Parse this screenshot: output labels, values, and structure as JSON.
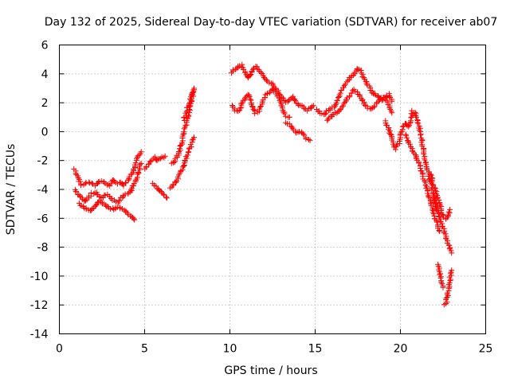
{
  "chart_data": {
    "type": "scatter",
    "title": "Day 132 of 2025, Sidereal Day-to-day VTEC variation (SDTVAR) for receiver ab07",
    "xlabel": "GPS time / hours",
    "ylabel": "SDTVAR / TECUs",
    "xlim": [
      0,
      25
    ],
    "ylim": [
      -14,
      6
    ],
    "xticks": [
      0,
      5,
      10,
      15,
      20,
      25
    ],
    "yticks": [
      -14,
      -12,
      -10,
      -8,
      -6,
      -4,
      -2,
      0,
      2,
      4,
      6
    ],
    "grid": true,
    "marker": "plus",
    "color": "#ff0000",
    "series": [
      {
        "name": "SDTVAR",
        "tracks": [
          {
            "x": [
              0.9,
              1.1,
              1.3,
              1.5,
              1.7,
              1.9,
              2.1,
              2.3,
              2.5,
              2.7,
              3.0,
              3.2,
              3.4,
              3.6,
              3.8,
              4.0,
              4.2,
              4.4,
              4.6,
              4.8
            ],
            "y": [
              -2.6,
              -3.2,
              -3.7,
              -3.6,
              -3.5,
              -3.6,
              -3.7,
              -3.5,
              -3.4,
              -3.6,
              -3.7,
              -3.3,
              -3.6,
              -3.5,
              -3.7,
              -3.4,
              -3.0,
              -2.5,
              -1.8,
              -1.4
            ]
          },
          {
            "x": [
              0.9,
              1.1,
              1.3,
              1.5,
              1.7,
              1.9,
              2.1,
              2.3,
              2.5,
              2.8,
              3.0,
              3.2,
              3.4,
              3.6,
              3.8,
              4.0,
              4.2,
              4.4,
              4.6,
              4.8
            ],
            "y": [
              -4.0,
              -4.4,
              -4.6,
              -4.8,
              -4.6,
              -4.3,
              -4.2,
              -4.4,
              -4.6,
              -4.3,
              -4.5,
              -4.8,
              -4.9,
              -4.6,
              -4.4,
              -4.3,
              -4.1,
              -3.6,
              -3.0,
              -2.2
            ]
          },
          {
            "x": [
              1.2,
              1.4,
              1.6,
              1.8,
              2.0,
              2.2,
              2.4,
              2.6,
              2.8,
              3.0,
              3.2,
              3.4,
              3.6,
              3.8,
              4.0,
              4.2,
              4.4
            ],
            "y": [
              -5.0,
              -5.2,
              -5.4,
              -5.5,
              -5.3,
              -5.0,
              -4.8,
              -5.0,
              -5.2,
              -5.3,
              -5.4,
              -5.2,
              -5.3,
              -5.4,
              -5.6,
              -5.9,
              -6.1
            ]
          },
          {
            "x": [
              5.0,
              5.2,
              5.4,
              5.6,
              5.8,
              6.0,
              6.2
            ],
            "y": [
              -2.6,
              -2.3,
              -2.0,
              -1.8,
              -2.0,
              -1.8,
              -1.7
            ]
          },
          {
            "x": [
              5.5,
              5.7,
              5.9,
              6.1,
              6.3
            ],
            "y": [
              -3.6,
              -3.9,
              -4.1,
              -4.3,
              -4.6
            ]
          },
          {
            "x": [
              6.5,
              6.7,
              6.9,
              7.1,
              7.3,
              7.5,
              7.7,
              7.9
            ],
            "y": [
              -3.9,
              -3.6,
              -3.4,
              -2.8,
              -2.3,
              -1.6,
              -1.0,
              -0.4
            ]
          },
          {
            "x": [
              6.6,
              6.8,
              7.0,
              7.2,
              7.4,
              7.6,
              7.8,
              7.9
            ],
            "y": [
              -2.2,
              -2.0,
              -1.5,
              -0.6,
              0.4,
              1.3,
              2.3,
              3.0
            ]
          },
          {
            "x": [
              7.3,
              7.5,
              7.7,
              7.9
            ],
            "y": [
              0.8,
              1.6,
              2.3,
              2.9
            ]
          },
          {
            "x": [
              10.1,
              10.3,
              10.5,
              10.7,
              10.9,
              11.1,
              11.3,
              11.5,
              11.7,
              11.9,
              12.1,
              12.3,
              12.5,
              12.7,
              12.9,
              13.1,
              13.3,
              13.5,
              13.7,
              13.9,
              14.1,
              14.3,
              14.5,
              14.7,
              14.9
            ],
            "y": [
              4.1,
              4.3,
              4.5,
              4.6,
              4.1,
              3.7,
              4.2,
              4.5,
              4.3,
              4.0,
              3.6,
              3.4,
              3.3,
              3.0,
              2.6,
              2.3,
              2.0,
              2.2,
              2.4,
              2.0,
              1.8,
              1.7,
              1.5,
              1.6,
              1.8
            ]
          },
          {
            "x": [
              10.1,
              10.3,
              10.5,
              10.7,
              10.9,
              11.1,
              11.3,
              11.5,
              11.7,
              11.9,
              12.1,
              12.3,
              12.5,
              12.7,
              12.9,
              13.1,
              13.3,
              13.5
            ],
            "y": [
              1.8,
              1.5,
              1.4,
              1.9,
              2.3,
              2.6,
              1.8,
              1.3,
              1.4,
              2.0,
              2.5,
              2.7,
              3.0,
              2.6,
              2.3,
              1.5,
              1.1,
              1.0
            ]
          },
          {
            "x": [
              13.3,
              13.5,
              13.7,
              13.9,
              14.1,
              14.3,
              14.5,
              14.7
            ],
            "y": [
              0.6,
              0.5,
              0.2,
              -0.1,
              0.0,
              -0.2,
              -0.5,
              -0.6
            ]
          },
          {
            "x": [
              15.1,
              15.3,
              15.5,
              15.7,
              15.9,
              16.1,
              16.3,
              16.5,
              16.7,
              16.9,
              17.1,
              17.3,
              17.5,
              17.7,
              17.9,
              18.1,
              18.3,
              18.5,
              18.7,
              18.9,
              19.1,
              19.3,
              19.5
            ],
            "y": [
              1.5,
              1.3,
              1.2,
              1.4,
              1.6,
              1.7,
              2.2,
              2.8,
              3.2,
              3.5,
              3.8,
              4.0,
              4.4,
              4.2,
              3.6,
              3.2,
              2.8,
              2.6,
              2.4,
              2.2,
              2.4,
              2.6,
              2.1
            ]
          },
          {
            "x": [
              15.7,
              15.9,
              16.1,
              16.3,
              16.5,
              16.7,
              16.9,
              17.1,
              17.3,
              17.5,
              17.7,
              17.9,
              18.1,
              18.3,
              18.5,
              18.7,
              18.9,
              19.1,
              19.3,
              19.5
            ],
            "y": [
              0.8,
              1.0,
              1.2,
              1.4,
              1.6,
              1.9,
              2.3,
              2.6,
              2.9,
              2.6,
              2.3,
              1.9,
              1.6,
              1.6,
              1.8,
              2.1,
              2.4,
              2.3,
              1.9,
              1.3
            ]
          },
          {
            "x": [
              19.1,
              19.3,
              19.5,
              19.7,
              19.9,
              20.1,
              20.3,
              20.5,
              20.7,
              20.9,
              21.1,
              21.3,
              21.5,
              21.7,
              21.9,
              22.1
            ],
            "y": [
              0.7,
              0.3,
              -0.5,
              -1.2,
              -0.8,
              0.2,
              0.6,
              0.3,
              1.4,
              1.2,
              0.3,
              -1.0,
              -2.2,
              -3.2,
              -4.2,
              -5.4
            ]
          },
          {
            "x": [
              20.3,
              20.5,
              20.7,
              20.9,
              21.1,
              21.3,
              21.5,
              21.7,
              21.9,
              22.1,
              22.3
            ],
            "y": [
              -0.2,
              -0.8,
              -1.3,
              -1.7,
              -2.2,
              -3.0,
              -3.8,
              -4.6,
              -5.5,
              -6.2,
              -6.9
            ]
          },
          {
            "x": [
              21.7,
              21.9,
              22.1,
              22.3,
              22.5,
              22.7,
              22.9
            ],
            "y": [
              -2.8,
              -3.5,
              -4.2,
              -5.0,
              -5.8,
              -6.1,
              -5.4
            ]
          },
          {
            "x": [
              22.0,
              22.2,
              22.4,
              22.6,
              22.8,
              23.0
            ],
            "y": [
              -4.5,
              -5.6,
              -6.4,
              -7.0,
              -7.8,
              -8.4
            ]
          },
          {
            "x": [
              22.2,
              22.3,
              22.4,
              22.5
            ],
            "y": [
              -9.2,
              -9.8,
              -10.3,
              -10.8
            ]
          },
          {
            "x": [
              22.6,
              22.7,
              22.8,
              22.9,
              23.0
            ],
            "y": [
              -12.0,
              -11.8,
              -11.0,
              -10.2,
              -9.6
            ]
          }
        ]
      }
    ]
  }
}
